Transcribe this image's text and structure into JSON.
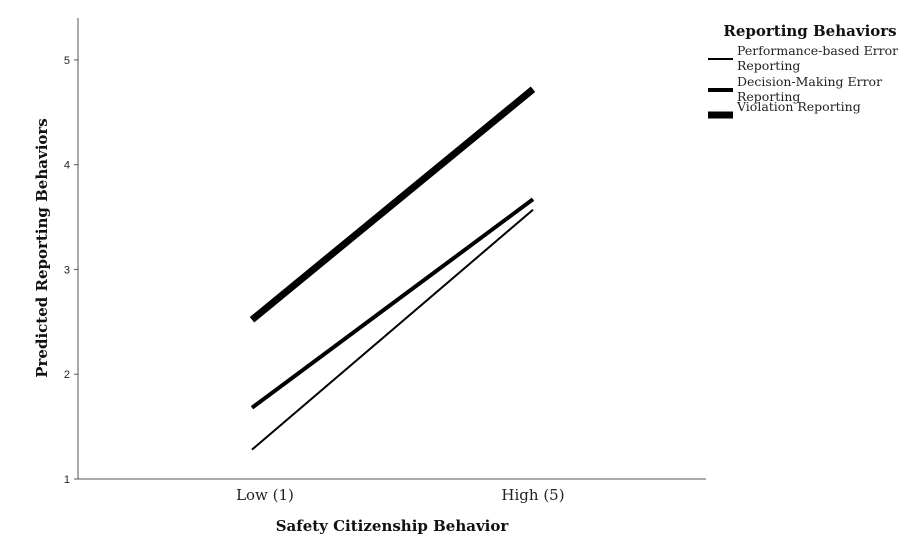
{
  "chart_data": {
    "type": "line",
    "xlabel": "Safety Citizenship Behavior",
    "ylabel": "Predicted Reporting Behaviors",
    "categories": [
      "Low (1)",
      "High (5)"
    ],
    "ylim": [
      1,
      5.4
    ],
    "yticks": [
      "1",
      "2",
      "3",
      "4",
      "5"
    ],
    "grid": false,
    "legend": {
      "title": "Reporting Behaviors",
      "placement": "top-right"
    },
    "series": [
      {
        "name": "Performance-based Error Reporting",
        "name_lines": [
          "Performance-based Error",
          "Reporting"
        ],
        "values": [
          1.28,
          3.57
        ],
        "stroke": "thin"
      },
      {
        "name": "Decision-Making Error Reporting",
        "name_lines": [
          "Decision-Making Error",
          "Reporting"
        ],
        "values": [
          1.68,
          3.67
        ],
        "stroke": "medium"
      },
      {
        "name": "Violation Reporting",
        "name_lines": [
          "Violation Reporting"
        ],
        "values": [
          2.52,
          4.72
        ],
        "stroke": "thick"
      }
    ],
    "line_color": "#000000"
  }
}
